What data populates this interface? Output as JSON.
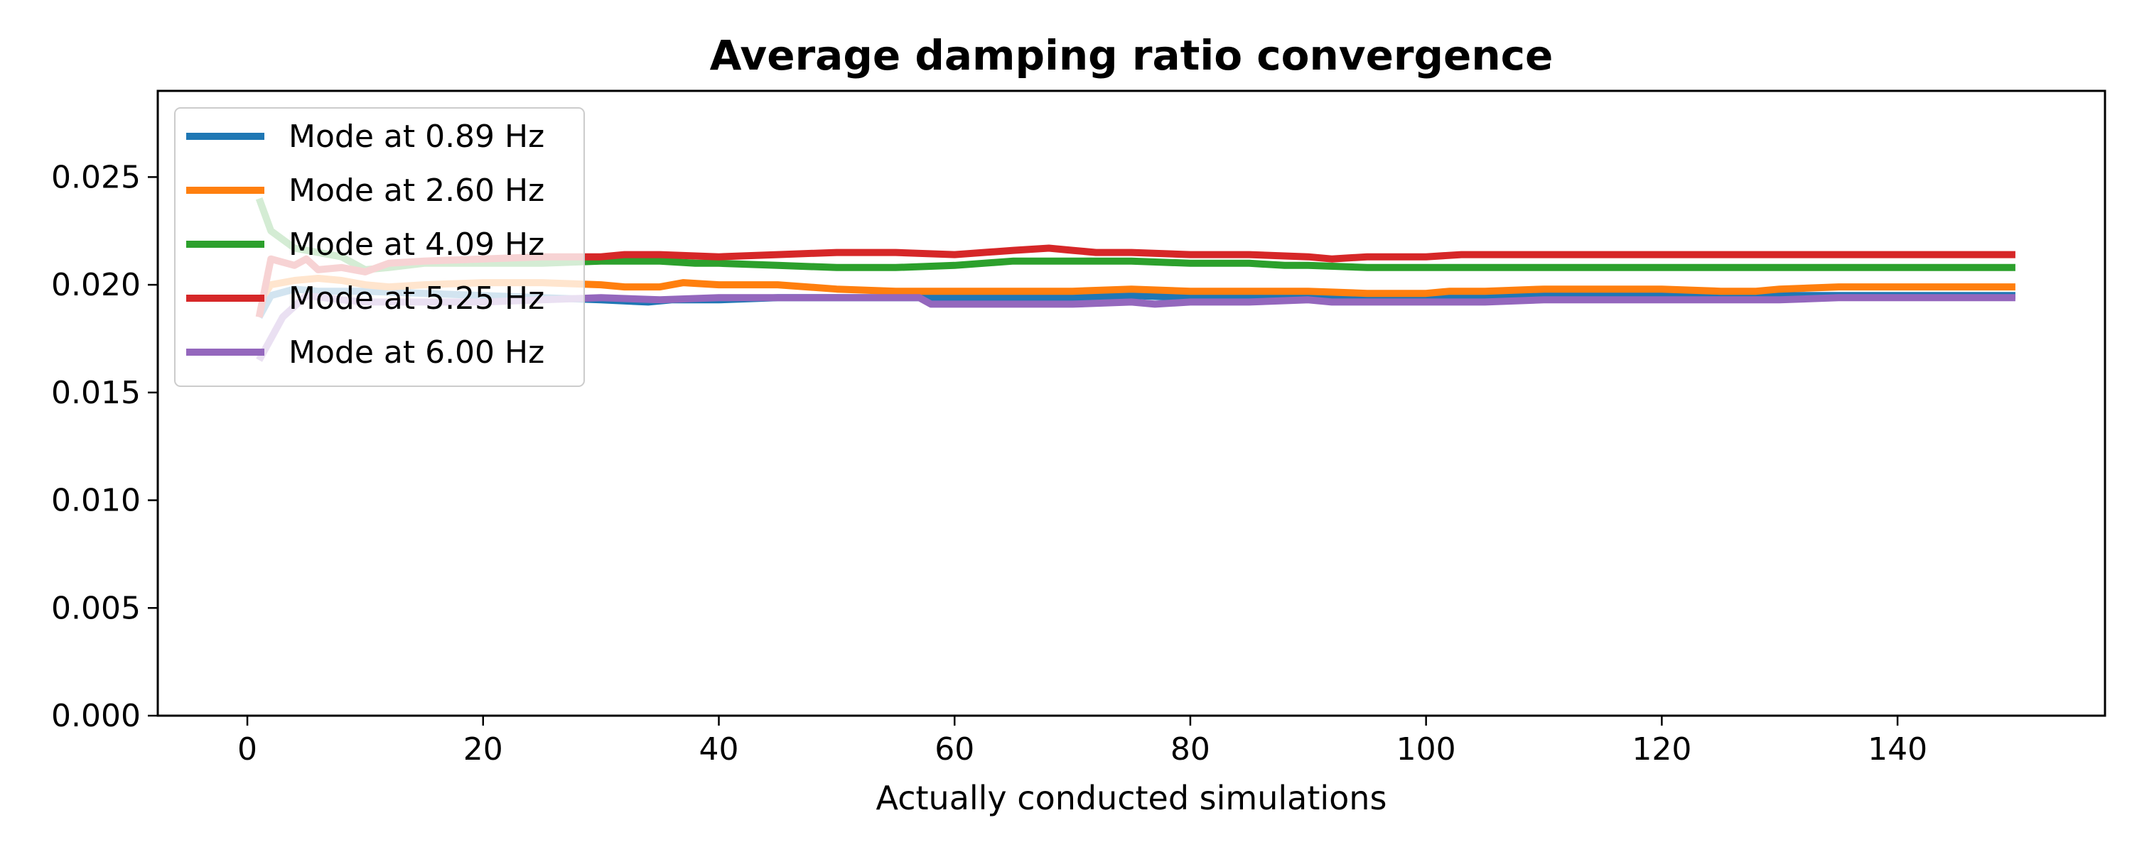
{
  "chart_data": {
    "type": "line",
    "title": "Average damping ratio convergence",
    "xlabel": "Actually conducted simulations",
    "ylabel": "",
    "xlim": [
      -7.6,
      157.6
    ],
    "ylim": [
      0.0,
      0.029
    ],
    "xticks": [
      0,
      20,
      40,
      60,
      80,
      100,
      120,
      140
    ],
    "yticks": [
      0.0,
      0.005,
      0.01,
      0.015,
      0.02,
      0.025
    ],
    "ytick_labels": [
      "0.000",
      "0.005",
      "0.010",
      "0.015",
      "0.020",
      "0.025"
    ],
    "grid": false,
    "legend_position": "upper-left",
    "series": [
      {
        "name": "Mode at 0.89 Hz",
        "color": "#1f77b4",
        "points": [
          [
            1,
            0.0185
          ],
          [
            2,
            0.0195
          ],
          [
            4,
            0.0198
          ],
          [
            6,
            0.0197
          ],
          [
            8,
            0.0197
          ],
          [
            10,
            0.0197
          ],
          [
            15,
            0.0196
          ],
          [
            20,
            0.0195
          ],
          [
            25,
            0.0194
          ],
          [
            30,
            0.0193
          ],
          [
            34,
            0.0192
          ],
          [
            36,
            0.0193
          ],
          [
            40,
            0.0193
          ],
          [
            45,
            0.0194
          ],
          [
            50,
            0.0194
          ],
          [
            55,
            0.0194
          ],
          [
            60,
            0.0194
          ],
          [
            65,
            0.0194
          ],
          [
            70,
            0.0194
          ],
          [
            75,
            0.0195
          ],
          [
            80,
            0.0194
          ],
          [
            85,
            0.0195
          ],
          [
            90,
            0.0195
          ],
          [
            95,
            0.0194
          ],
          [
            100,
            0.0195
          ],
          [
            105,
            0.0195
          ],
          [
            110,
            0.0195
          ],
          [
            115,
            0.0195
          ],
          [
            120,
            0.0195
          ],
          [
            125,
            0.0195
          ],
          [
            130,
            0.0195
          ],
          [
            135,
            0.0195
          ],
          [
            140,
            0.0195
          ],
          [
            145,
            0.0195
          ],
          [
            150,
            0.0195
          ]
        ]
      },
      {
        "name": "Mode at 2.60 Hz",
        "color": "#ff7f0e",
        "points": [
          [
            1,
            0.0192
          ],
          [
            2,
            0.02
          ],
          [
            4,
            0.0202
          ],
          [
            6,
            0.0203
          ],
          [
            8,
            0.0202
          ],
          [
            10,
            0.02
          ],
          [
            12,
            0.0199
          ],
          [
            15,
            0.02
          ],
          [
            20,
            0.0201
          ],
          [
            25,
            0.0201
          ],
          [
            30,
            0.02
          ],
          [
            32,
            0.0199
          ],
          [
            35,
            0.0199
          ],
          [
            37,
            0.0201
          ],
          [
            40,
            0.02
          ],
          [
            45,
            0.02
          ],
          [
            50,
            0.0198
          ],
          [
            55,
            0.0197
          ],
          [
            60,
            0.0197
          ],
          [
            65,
            0.0197
          ],
          [
            70,
            0.0197
          ],
          [
            75,
            0.0198
          ],
          [
            80,
            0.0197
          ],
          [
            85,
            0.0197
          ],
          [
            90,
            0.0197
          ],
          [
            95,
            0.0196
          ],
          [
            100,
            0.0196
          ],
          [
            102,
            0.0197
          ],
          [
            105,
            0.0197
          ],
          [
            110,
            0.0198
          ],
          [
            115,
            0.0198
          ],
          [
            120,
            0.0198
          ],
          [
            125,
            0.0197
          ],
          [
            128,
            0.0197
          ],
          [
            130,
            0.0198
          ],
          [
            135,
            0.0199
          ],
          [
            140,
            0.0199
          ],
          [
            145,
            0.0199
          ],
          [
            150,
            0.0199
          ]
        ]
      },
      {
        "name": "Mode at 4.09 Hz",
        "color": "#2ca02c",
        "points": [
          [
            1,
            0.024
          ],
          [
            2,
            0.0225
          ],
          [
            4,
            0.0217
          ],
          [
            6,
            0.0215
          ],
          [
            8,
            0.0213
          ],
          [
            10,
            0.0207
          ],
          [
            12,
            0.0208
          ],
          [
            15,
            0.021
          ],
          [
            20,
            0.021
          ],
          [
            25,
            0.021
          ],
          [
            30,
            0.0211
          ],
          [
            35,
            0.0211
          ],
          [
            38,
            0.021
          ],
          [
            40,
            0.021
          ],
          [
            45,
            0.0209
          ],
          [
            50,
            0.0208
          ],
          [
            55,
            0.0208
          ],
          [
            60,
            0.0209
          ],
          [
            65,
            0.0211
          ],
          [
            70,
            0.0211
          ],
          [
            75,
            0.0211
          ],
          [
            80,
            0.021
          ],
          [
            85,
            0.021
          ],
          [
            88,
            0.0209
          ],
          [
            90,
            0.0209
          ],
          [
            95,
            0.0208
          ],
          [
            100,
            0.0208
          ],
          [
            105,
            0.0208
          ],
          [
            110,
            0.0208
          ],
          [
            115,
            0.0208
          ],
          [
            120,
            0.0208
          ],
          [
            125,
            0.0208
          ],
          [
            130,
            0.0208
          ],
          [
            135,
            0.0208
          ],
          [
            140,
            0.0208
          ],
          [
            145,
            0.0208
          ],
          [
            150,
            0.0208
          ]
        ]
      },
      {
        "name": "Mode at 5.25 Hz",
        "color": "#d62728",
        "points": [
          [
            1,
            0.0185
          ],
          [
            2,
            0.0212
          ],
          [
            4,
            0.0209
          ],
          [
            5,
            0.0212
          ],
          [
            6,
            0.0207
          ],
          [
            8,
            0.0208
          ],
          [
            10,
            0.0206
          ],
          [
            12,
            0.021
          ],
          [
            15,
            0.0211
          ],
          [
            20,
            0.0212
          ],
          [
            25,
            0.0213
          ],
          [
            30,
            0.0213
          ],
          [
            32,
            0.0214
          ],
          [
            35,
            0.0214
          ],
          [
            40,
            0.0213
          ],
          [
            45,
            0.0214
          ],
          [
            50,
            0.0215
          ],
          [
            55,
            0.0215
          ],
          [
            60,
            0.0214
          ],
          [
            65,
            0.0216
          ],
          [
            68,
            0.0217
          ],
          [
            70,
            0.0216
          ],
          [
            72,
            0.0215
          ],
          [
            75,
            0.0215
          ],
          [
            80,
            0.0214
          ],
          [
            85,
            0.0214
          ],
          [
            90,
            0.0213
          ],
          [
            92,
            0.0212
          ],
          [
            95,
            0.0213
          ],
          [
            100,
            0.0213
          ],
          [
            103,
            0.0214
          ],
          [
            105,
            0.0214
          ],
          [
            110,
            0.0214
          ],
          [
            115,
            0.0214
          ],
          [
            120,
            0.0214
          ],
          [
            125,
            0.0214
          ],
          [
            130,
            0.0214
          ],
          [
            135,
            0.0214
          ],
          [
            140,
            0.0214
          ],
          [
            145,
            0.0214
          ],
          [
            150,
            0.0214
          ]
        ]
      },
      {
        "name": "Mode at 6.00 Hz",
        "color": "#9467bd",
        "points": [
          [
            1,
            0.0165
          ],
          [
            3,
            0.0185
          ],
          [
            5,
            0.0195
          ],
          [
            8,
            0.0193
          ],
          [
            10,
            0.0192
          ],
          [
            15,
            0.0192
          ],
          [
            20,
            0.0192
          ],
          [
            25,
            0.0193
          ],
          [
            30,
            0.0194
          ],
          [
            35,
            0.0193
          ],
          [
            40,
            0.0194
          ],
          [
            45,
            0.0194
          ],
          [
            50,
            0.0194
          ],
          [
            55,
            0.0194
          ],
          [
            57,
            0.0194
          ],
          [
            58,
            0.0191
          ],
          [
            60,
            0.0191
          ],
          [
            65,
            0.0191
          ],
          [
            70,
            0.0191
          ],
          [
            75,
            0.0192
          ],
          [
            77,
            0.0191
          ],
          [
            80,
            0.0192
          ],
          [
            85,
            0.0192
          ],
          [
            90,
            0.0193
          ],
          [
            92,
            0.0192
          ],
          [
            95,
            0.0192
          ],
          [
            100,
            0.0192
          ],
          [
            105,
            0.0192
          ],
          [
            110,
            0.0193
          ],
          [
            115,
            0.0193
          ],
          [
            120,
            0.0193
          ],
          [
            125,
            0.0193
          ],
          [
            130,
            0.0193
          ],
          [
            135,
            0.0194
          ],
          [
            140,
            0.0194
          ],
          [
            145,
            0.0194
          ],
          [
            150,
            0.0194
          ]
        ]
      }
    ]
  }
}
